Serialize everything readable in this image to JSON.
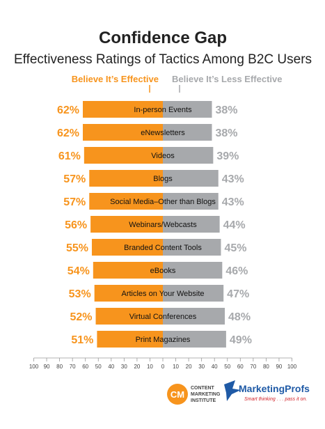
{
  "chart_data": {
    "type": "bar",
    "title": "Confidence Gap",
    "subtitle": "Effectiveness Ratings of Tactics Among B2C Users",
    "categories": [
      "In-person Events",
      "eNewsletters",
      "Videos",
      "Blogs",
      "Social Media–Other than Blogs",
      "Webinars/Webcasts",
      "Branded Content Tools",
      "eBooks",
      "Articles on Your Website",
      "Virtual Conferences",
      "Print Magazines"
    ],
    "series": [
      {
        "name": "Believe It’s Effective",
        "values": [
          62,
          62,
          61,
          57,
          57,
          56,
          55,
          54,
          53,
          52,
          51
        ],
        "labels": [
          "62%",
          "62%",
          "61%",
          "57%",
          "57%",
          "56%",
          "55%",
          "54%",
          "53%",
          "52%",
          "51%"
        ],
        "color": "#F7941D"
      },
      {
        "name": "Believe It’s Less Effective",
        "values": [
          38,
          38,
          39,
          43,
          43,
          44,
          45,
          46,
          47,
          48,
          49
        ],
        "labels": [
          "38%",
          "38%",
          "39%",
          "43%",
          "43%",
          "44%",
          "45%",
          "46%",
          "47%",
          "48%",
          "49%"
        ],
        "color": "#A7A9AC"
      }
    ],
    "x_ticks": [
      "100",
      "90",
      "80",
      "70",
      "60",
      "50",
      "40",
      "30",
      "20",
      "10",
      "0",
      "10",
      "20",
      "30",
      "40",
      "50",
      "60",
      "70",
      "80",
      "90",
      "100"
    ],
    "xlim": [
      -100,
      100
    ],
    "grid": false,
    "legend": "top-center"
  },
  "logos": {
    "cmi_mark": "CM",
    "cmi_lines": [
      "CONTENT",
      "MARKETING",
      "INSTITUTE"
    ],
    "mp_name": "MarketingProfs",
    "mp_tagline": "Smart thinking . . . pass it on."
  },
  "colors": {
    "orange": "#F7941D",
    "gray": "#A7A9AC",
    "blue": "#1F5AA6"
  }
}
